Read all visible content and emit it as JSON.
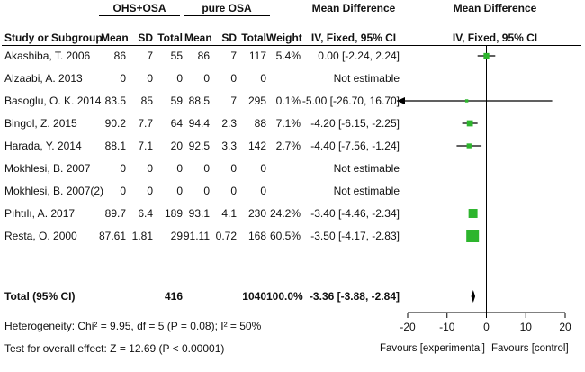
{
  "groups": {
    "experimental": "OHS+OSA",
    "control": "pure OSA",
    "md_header": "Mean Difference",
    "plot_header": "Mean Difference"
  },
  "columns": {
    "study": "Study or Subgroup",
    "mean1": "Mean",
    "sd1": "SD",
    "total1": "Total",
    "mean2": "Mean",
    "sd2": "SD",
    "total2": "Total",
    "weight": "Weight",
    "md": "IV, Fixed, 95% CI",
    "plot": "IV, Fixed, 95% CI"
  },
  "rows": [
    {
      "study": "Akashiba, T. 2006",
      "mean1": "86",
      "sd1": "7",
      "total1": "55",
      "mean2": "86",
      "sd2": "7",
      "total2": "117",
      "weight": "5.4%",
      "md": "0.00 [-2.24, 2.24]"
    },
    {
      "study": "Alzaabi, A. 2013",
      "mean1": "0",
      "sd1": "0",
      "total1": "0",
      "mean2": "0",
      "sd2": "0",
      "total2": "0",
      "weight": "",
      "md": "Not estimable"
    },
    {
      "study": "Basoglu, O. K. 2014",
      "mean1": "83.5",
      "sd1": "85",
      "total1": "59",
      "mean2": "88.5",
      "sd2": "7",
      "total2": "295",
      "weight": "0.1%",
      "md": "-5.00 [-26.70, 16.70]"
    },
    {
      "study": "Bingol, Z. 2015",
      "mean1": "90.2",
      "sd1": "7.7",
      "total1": "64",
      "mean2": "94.4",
      "sd2": "2.3",
      "total2": "88",
      "weight": "7.1%",
      "md": "-4.20 [-6.15, -2.25]"
    },
    {
      "study": "Harada, Y. 2014",
      "mean1": "88.1",
      "sd1": "7.1",
      "total1": "20",
      "mean2": "92.5",
      "sd2": "3.3",
      "total2": "142",
      "weight": "2.7%",
      "md": "-4.40 [-7.56, -1.24]"
    },
    {
      "study": "Mokhlesi, B. 2007",
      "mean1": "0",
      "sd1": "0",
      "total1": "0",
      "mean2": "0",
      "sd2": "0",
      "total2": "0",
      "weight": "",
      "md": "Not estimable"
    },
    {
      "study": "Mokhlesi, B. 2007(2)",
      "mean1": "0",
      "sd1": "0",
      "total1": "0",
      "mean2": "0",
      "sd2": "0",
      "total2": "0",
      "weight": "",
      "md": "Not estimable"
    },
    {
      "study": "Pıhtılı, A. 2017",
      "mean1": "89.7",
      "sd1": "6.4",
      "total1": "189",
      "mean2": "93.1",
      "sd2": "4.1",
      "total2": "230",
      "weight": "24.2%",
      "md": "-3.40 [-4.46, -2.34]"
    },
    {
      "study": "Resta, O. 2000",
      "mean1": "87.61",
      "sd1": "1.81",
      "total1": "29",
      "mean2": "91.11",
      "sd2": "0.72",
      "total2": "168",
      "weight": "60.5%",
      "md": "-3.50 [-4.17, -2.83]"
    }
  ],
  "total": {
    "study": "Total (95% CI)",
    "total1": "416",
    "total2": "1040",
    "weight": "100.0%",
    "md": "-3.36 [-3.88, -2.84]"
  },
  "footer": {
    "heterogeneity": "Heterogeneity: Chi² = 9.95, df = 5 (P = 0.08); I² = 50%",
    "overall": "Test for overall effect: Z = 12.69 (P < 0.00001)"
  },
  "chart_data": {
    "type": "forest",
    "title": "Mean Difference IV, Fixed, 95% CI",
    "xlim": [
      -20,
      20
    ],
    "ticks": [
      -20,
      -10,
      0,
      10,
      20
    ],
    "xlabel_left": "Favours [experimental]",
    "xlabel_right": "Favours [control]",
    "colors": {
      "marker": "#2db52d",
      "line": "#000000",
      "axis": "#000000"
    },
    "studies": [
      {
        "name": "Akashiba, T. 2006",
        "md": 0.0,
        "lo": -2.24,
        "hi": 2.24,
        "weight": 5.4
      },
      {
        "name": "Alzaabi, A. 2013",
        "md": null,
        "lo": null,
        "hi": null,
        "weight": 0
      },
      {
        "name": "Basoglu, O. K. 2014",
        "md": -5.0,
        "lo": -26.7,
        "hi": 16.7,
        "weight": 0.1
      },
      {
        "name": "Bingol, Z. 2015",
        "md": -4.2,
        "lo": -6.15,
        "hi": -2.25,
        "weight": 7.1
      },
      {
        "name": "Harada, Y. 2014",
        "md": -4.4,
        "lo": -7.56,
        "hi": -1.24,
        "weight": 2.7
      },
      {
        "name": "Mokhlesi, B. 2007",
        "md": null,
        "lo": null,
        "hi": null,
        "weight": 0
      },
      {
        "name": "Mokhlesi, B. 2007(2)",
        "md": null,
        "lo": null,
        "hi": null,
        "weight": 0
      },
      {
        "name": "Pıhtılı, A. 2017",
        "md": -3.4,
        "lo": -4.46,
        "hi": -2.34,
        "weight": 24.2
      },
      {
        "name": "Resta, O. 2000",
        "md": -3.5,
        "lo": -4.17,
        "hi": -2.83,
        "weight": 60.5
      }
    ],
    "pooled": {
      "md": -3.36,
      "lo": -3.88,
      "hi": -2.84
    }
  }
}
